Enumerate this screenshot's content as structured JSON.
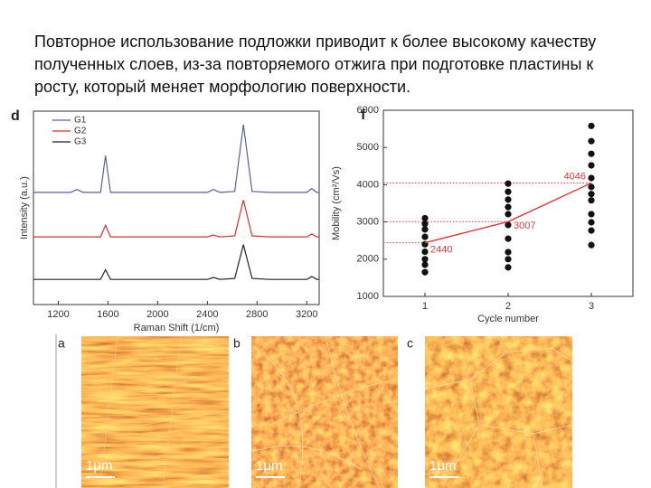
{
  "header": {
    "text": "Повторное использование подложки приводит к более высокому качеству полученных слоев, из-за повторяемого отжига при подготовке пластины к росту, который меняет морфологию поверхности."
  },
  "chart_data": [
    {
      "type": "line",
      "panel": "d",
      "xlabel": "Raman Shift (1/cm)",
      "ylabel": "Intensity (a.u.)",
      "x": [
        1000,
        1300,
        1350,
        1400,
        1540,
        1580,
        1620,
        1800,
        2400,
        2450,
        2500,
        2620,
        2690,
        2760,
        2900,
        3200,
        3240,
        3280,
        3300
      ],
      "xlim": [
        1000,
        3300
      ],
      "xticks": [
        1200,
        1600,
        2000,
        2400,
        2800,
        3200
      ],
      "ylim": [
        0,
        10
      ],
      "legend": "upper left",
      "series": [
        {
          "name": "G1",
          "color": "#5a5f9c",
          "values": [
            5.8,
            5.8,
            5.95,
            5.8,
            5.8,
            7.7,
            5.8,
            5.8,
            5.8,
            5.95,
            5.8,
            5.85,
            9.3,
            5.85,
            5.8,
            5.8,
            6.0,
            5.8,
            5.8
          ]
        },
        {
          "name": "G2",
          "color": "#d9302c",
          "values": [
            3.5,
            3.5,
            3.5,
            3.5,
            3.5,
            4.1,
            3.5,
            3.5,
            3.5,
            3.6,
            3.5,
            3.55,
            5.4,
            3.55,
            3.5,
            3.5,
            3.65,
            3.5,
            3.5
          ]
        },
        {
          "name": "G3",
          "color": "#222222",
          "values": [
            1.3,
            1.3,
            1.3,
            1.3,
            1.3,
            1.8,
            1.3,
            1.3,
            1.3,
            1.4,
            1.3,
            1.35,
            3.1,
            1.35,
            1.3,
            1.3,
            1.45,
            1.3,
            1.3
          ]
        }
      ]
    },
    {
      "type": "scatter",
      "panel": "f",
      "xlabel": "Cycle number",
      "ylabel": "Mobility (cm²/Vs)",
      "xlim": [
        0.5,
        3.5
      ],
      "xticks": [
        1,
        2,
        3
      ],
      "ylim": [
        1000,
        6000
      ],
      "yticks": [
        1000,
        2000,
        3000,
        4000,
        5000,
        6000
      ],
      "points": {
        "color": "#111111",
        "x": [
          1,
          1,
          1,
          1,
          1,
          1,
          1,
          1,
          1,
          2,
          2,
          2,
          2,
          2,
          2,
          2,
          2,
          2,
          2,
          3,
          3,
          3,
          3,
          3,
          3,
          3,
          3,
          3,
          3,
          3,
          3
        ],
        "values": [
          3100,
          2950,
          2800,
          2600,
          2400,
          2200,
          2000,
          1850,
          1650,
          4030,
          3810,
          3600,
          3400,
          3210,
          2920,
          2550,
          2190,
          2000,
          1780,
          5580,
          5170,
          4830,
          4520,
          4180,
          3940,
          3750,
          3580,
          3210,
          2990,
          2770,
          2380
        ]
      },
      "mean": {
        "color": "#e0383c",
        "x": [
          1,
          2,
          3
        ],
        "values": [
          2440,
          3007,
          4046
        ]
      }
    }
  ],
  "images": [
    {
      "label": "a",
      "scale": "1μm"
    },
    {
      "label": "b",
      "scale": "1μm"
    },
    {
      "label": "c",
      "scale": "1μm"
    }
  ]
}
